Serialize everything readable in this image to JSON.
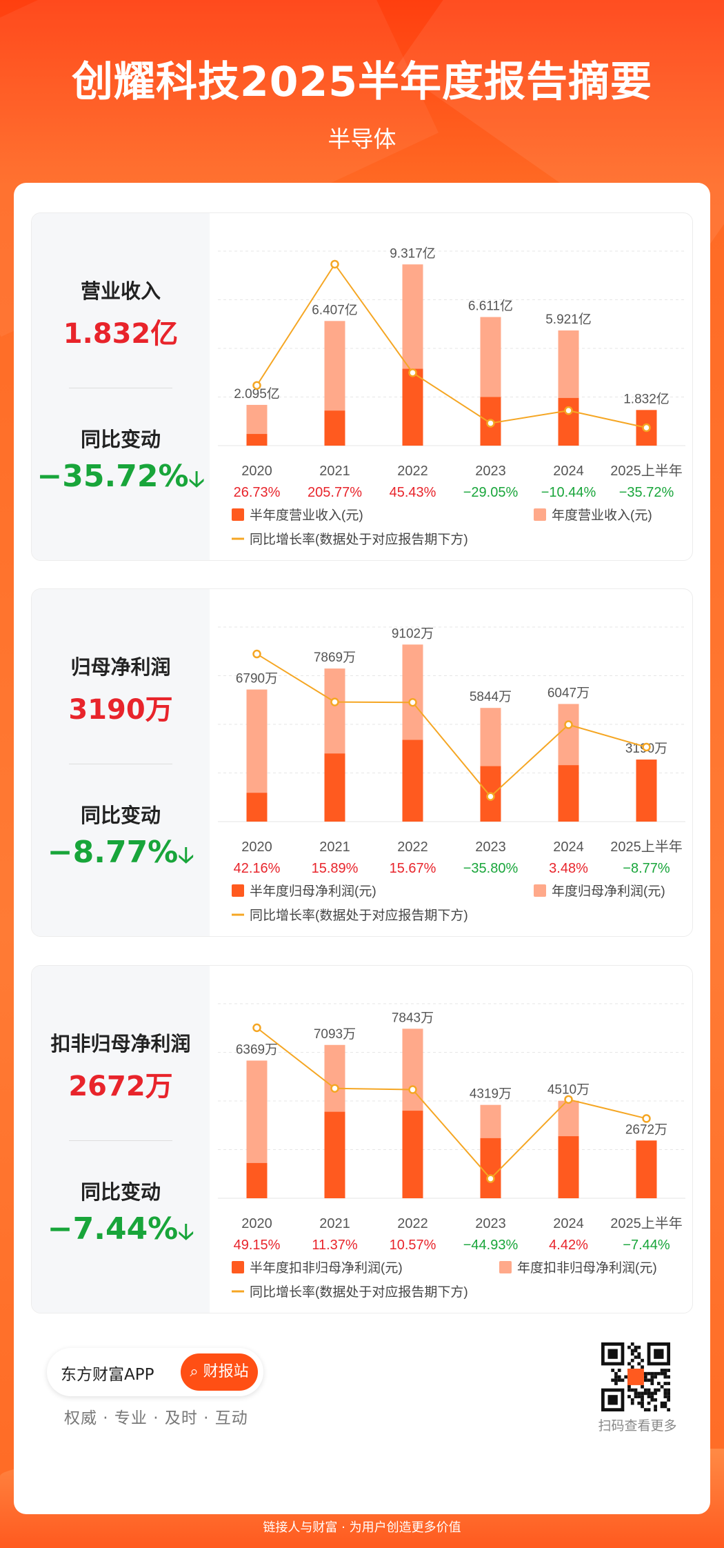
{
  "header": {
    "title": "创耀科技2025半年度报告摘要",
    "subtitle": "半导体"
  },
  "change_label": "同比变动",
  "legend_line": "同比增长率(数据处于对应报告期下方)",
  "colors": {
    "half": "#ff5a1f",
    "annual": "#ffa98a",
    "line": "#f5a623",
    "up": "#e8242b",
    "down": "#18a53a"
  },
  "panels": [
    {
      "metric_label": "营业收入",
      "metric_value": "1.832亿",
      "change_value": "−35.72%",
      "legend_half": "半年度营业收入(元)",
      "legend_annual": "年度营业收入(元)"
    },
    {
      "metric_label": "归母净利润",
      "metric_value": "3190万",
      "change_value": "−8.77%",
      "legend_half": "半年度归母净利润(元)",
      "legend_annual": "年度归母净利润(元)"
    },
    {
      "metric_label": "扣非归母净利润",
      "metric_value": "2672万",
      "change_value": "−7.44%",
      "legend_half": "半年度扣非归母净利润(元)",
      "legend_annual": "年度扣非归母净利润(元)"
    }
  ],
  "chart_data": [
    {
      "type": "bar",
      "categories": [
        "2020",
        "2021",
        "2022",
        "2023",
        "2024",
        "2025上半年"
      ],
      "series": [
        {
          "name": "半年度营业收入(元)",
          "values": [
            0.6,
            1.8,
            3.95,
            2.5,
            2.45,
            1.832
          ]
        },
        {
          "name": "年度营业收入(元)",
          "values": [
            2.095,
            6.407,
            9.317,
            6.611,
            5.921,
            null
          ]
        }
      ],
      "annual_labels": [
        "2.095亿",
        "6.407亿",
        "9.317亿",
        "6.611亿",
        "5.921亿",
        "1.832亿"
      ],
      "growth": [
        26.73,
        205.77,
        45.43,
        -29.05,
        -10.44,
        -35.72
      ],
      "growth_labels": [
        "26.73%",
        "205.77%",
        "45.43%",
        "−29.05%",
        "−10.44%",
        "−35.72%"
      ],
      "bar_max": 10,
      "line_range": [
        -50,
        220
      ]
    },
    {
      "type": "bar",
      "categories": [
        "2020",
        "2021",
        "2022",
        "2023",
        "2024",
        "2025上半年"
      ],
      "series": [
        {
          "name": "半年度归母净利润(元)",
          "values": [
            1480,
            3500,
            4200,
            2850,
            2900,
            3190
          ]
        },
        {
          "name": "年度归母净利润(元)",
          "values": [
            6790,
            7869,
            9102,
            5844,
            6047,
            null
          ]
        }
      ],
      "annual_labels": [
        "6790万",
        "7869万",
        "9102万",
        "5844万",
        "6047万",
        "3190万"
      ],
      "growth": [
        42.16,
        15.89,
        15.67,
        -35.8,
        3.48,
        -8.77
      ],
      "growth_labels": [
        "42.16%",
        "15.89%",
        "15.67%",
        "−35.80%",
        "3.48%",
        "−8.77%"
      ],
      "bar_max": 10000,
      "line_range": [
        -45,
        55
      ]
    },
    {
      "type": "bar",
      "categories": [
        "2020",
        "2021",
        "2022",
        "2023",
        "2024",
        "2025上半年"
      ],
      "series": [
        {
          "name": "半年度扣非归母净利润(元)",
          "values": [
            1630,
            4000,
            4050,
            2780,
            2870,
            2672
          ]
        },
        {
          "name": "年度扣非归母净利润(元)",
          "values": [
            6369,
            7093,
            7843,
            4319,
            4510,
            null
          ]
        }
      ],
      "annual_labels": [
        "6369万",
        "7093万",
        "7843万",
        "4319万",
        "4510万",
        "2672万"
      ],
      "growth": [
        49.15,
        11.37,
        10.57,
        -44.93,
        4.42,
        -7.44
      ],
      "growth_labels": [
        "49.15%",
        "11.37%",
        "10.57%",
        "−44.93%",
        "4.42%",
        "−7.44%"
      ],
      "bar_max": 9000,
      "line_range": [
        -52,
        62
      ]
    }
  ],
  "footer": {
    "app_name": "东方财富APP",
    "search_button": "财报站",
    "tagline": "权威 · 专业 · 及时 · 互动",
    "qr_label": "扫码查看更多",
    "slogan": "链接人与财富 · 为用户创造更多价值"
  }
}
